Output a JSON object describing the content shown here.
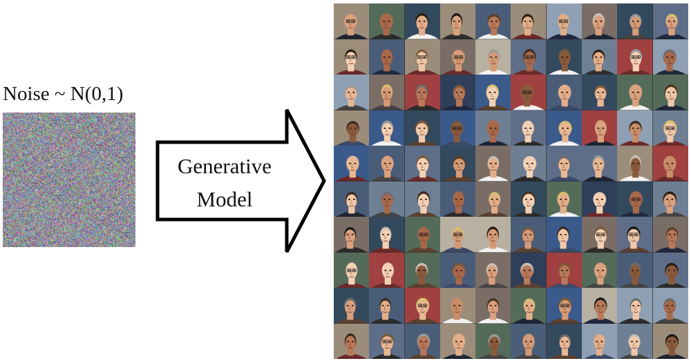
{
  "noise": {
    "label": "Noise ~ N(0,1)"
  },
  "arrow": {
    "line1": "Generative",
    "line2": "Model"
  },
  "faces": {
    "rows": 10,
    "cols": 10,
    "description_icon": "face-photo"
  },
  "colors": {
    "arrow_stroke": "#000000",
    "arrow_fill": "#ffffff",
    "text": "#111111"
  }
}
